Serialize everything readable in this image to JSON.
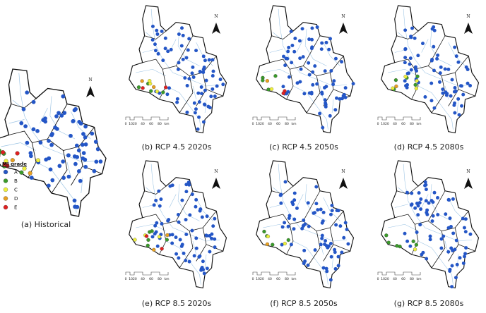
{
  "panels": [
    {
      "caption": "(a) Historical"
    },
    {
      "caption": "(b) RCP 4.5 2020s"
    },
    {
      "caption": "(c) RCP 4.5 2050s"
    },
    {
      "caption": "(d) RCP 4.5 2080s"
    },
    {
      "caption": "(e) RCP 8.5 2020s"
    },
    {
      "caption": "(f) RCP 8.5 2050s"
    },
    {
      "caption": "(g) RCP 8.5 2080s"
    }
  ],
  "legend": {
    "title": "MI grade",
    "items": [
      {
        "label": "A",
        "color": "#2456c6"
      },
      {
        "label": "B",
        "color": "#3a9a2a"
      },
      {
        "label": "C",
        "color": "#eef03c"
      },
      {
        "label": "D",
        "color": "#e8a020"
      },
      {
        "label": "E",
        "color": "#e02020"
      }
    ]
  },
  "north_label": "N",
  "scale_bar": {
    "labels": [
      "0",
      "1020",
      "40",
      "60",
      "80"
    ],
    "unit": "km"
  }
}
